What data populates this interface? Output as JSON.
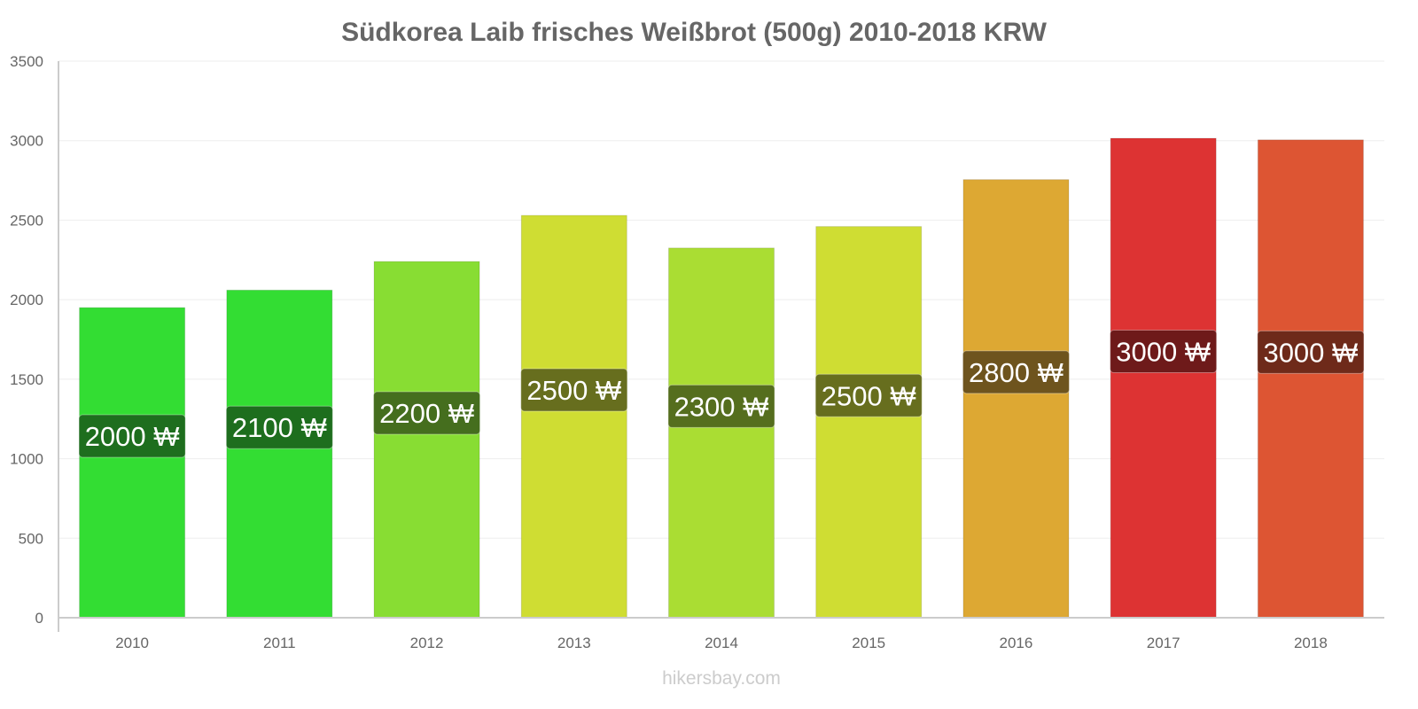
{
  "chart_data": {
    "type": "bar",
    "title": "Südkorea Laib frisches Weißbrot (500g) 2010-2018 KRW",
    "xlabel": "",
    "ylabel": "",
    "categories": [
      "2010",
      "2011",
      "2012",
      "2013",
      "2014",
      "2015",
      "2016",
      "2017",
      "2018"
    ],
    "values": [
      1950,
      2060,
      2240,
      2530,
      2325,
      2460,
      2755,
      3015,
      3005
    ],
    "data_labels": [
      "2000 ₩",
      "2100 ₩",
      "2200 ₩",
      "2500 ₩",
      "2300 ₩",
      "2500 ₩",
      "2800 ₩",
      "3000 ₩",
      "3000 ₩"
    ],
    "bar_colors": [
      "#33dd33",
      "#33dd33",
      "#88dd33",
      "#cfdd33",
      "#aadd33",
      "#cfdd33",
      "#dda833",
      "#dd3333",
      "#dd5533"
    ],
    "label_colors": [
      "#1e6e1e",
      "#1e6e1e",
      "#456e1e",
      "#676e1e",
      "#556e1e",
      "#676e1e",
      "#6e541e",
      "#6e1a1a",
      "#6e2a1a"
    ],
    "ylim": [
      0,
      3500
    ],
    "yticks": [
      0,
      500,
      1000,
      1500,
      2000,
      2500,
      3000,
      3500
    ],
    "grid": true,
    "legend": "none"
  },
  "watermark": "hikersbay.com"
}
